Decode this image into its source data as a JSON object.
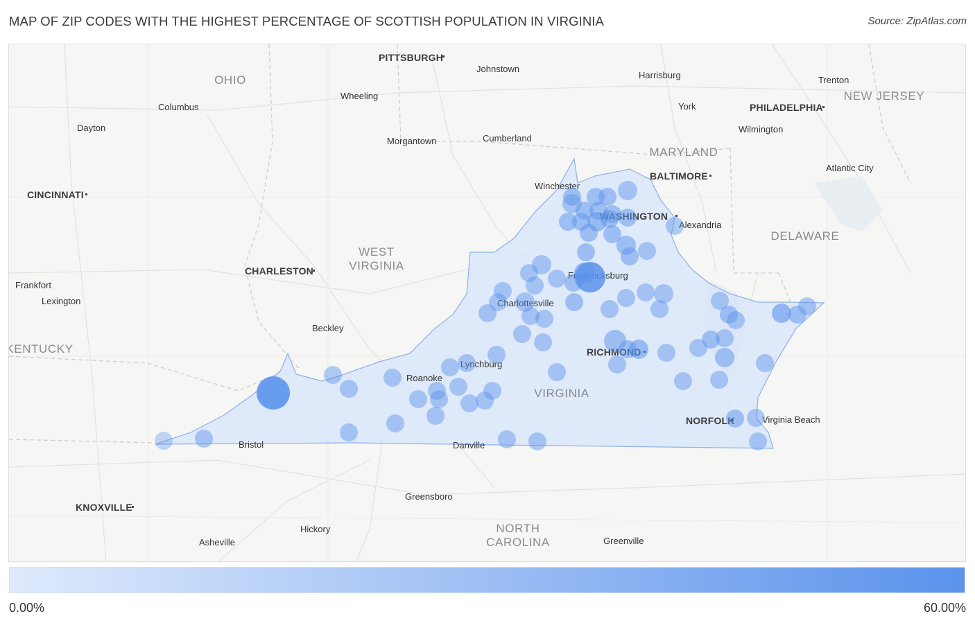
{
  "title": "MAP OF ZIP CODES WITH THE HIGHEST PERCENTAGE OF SCOTTISH POPULATION IN VIRGINIA",
  "source": "Source: ZipAtlas.com",
  "legend": {
    "min_label": "0.00%",
    "max_label": "60.00%",
    "min_value": 0,
    "max_value": 60,
    "color_low": "#dfeafc",
    "color_high": "#3d7fe8"
  },
  "colors": {
    "state_fill": "#d6e4fb",
    "state_stroke": "#8fb0e6",
    "marker": "#5b93ec",
    "background": "#f6f6f4"
  },
  "map_labels": {
    "states": [
      {
        "id": "ohio",
        "text": "OHIO"
      },
      {
        "id": "west-virginia-1",
        "text": "WEST"
      },
      {
        "id": "west-virginia-2",
        "text": "VIRGINIA"
      },
      {
        "id": "maryland",
        "text": "MARYLAND"
      },
      {
        "id": "new-jersey",
        "text": "NEW JERSEY"
      },
      {
        "id": "delaware",
        "text": "DELAWARE"
      },
      {
        "id": "kentucky",
        "text": "KENTUCKY"
      },
      {
        "id": "virginia",
        "text": "VIRGINIA"
      },
      {
        "id": "north-carolina-1",
        "text": "NORTH"
      },
      {
        "id": "north-carolina-2",
        "text": "CAROLINA"
      }
    ],
    "big_cities": [
      {
        "id": "pittsburgh",
        "text": "PITTSBURGH"
      },
      {
        "id": "philadelphia",
        "text": "PHILADELPHIA"
      },
      {
        "id": "baltimore",
        "text": "BALTIMORE"
      },
      {
        "id": "washington",
        "text": "WASHINGTON"
      },
      {
        "id": "cincinnati",
        "text": "CINCINNATI"
      },
      {
        "id": "charleston",
        "text": "CHARLESTON"
      },
      {
        "id": "richmond",
        "text": "RICHMOND"
      },
      {
        "id": "norfolk",
        "text": "NORFOLK"
      },
      {
        "id": "knoxville",
        "text": "KNOXVILLE"
      }
    ],
    "cities": [
      {
        "id": "johnstown",
        "text": "Johnstown"
      },
      {
        "id": "harrisburg",
        "text": "Harrisburg"
      },
      {
        "id": "trenton",
        "text": "Trenton"
      },
      {
        "id": "columbus",
        "text": "Columbus"
      },
      {
        "id": "wheeling",
        "text": "Wheeling"
      },
      {
        "id": "york",
        "text": "York"
      },
      {
        "id": "dayton",
        "text": "Dayton"
      },
      {
        "id": "wilmington",
        "text": "Wilmington"
      },
      {
        "id": "morgantown",
        "text": "Morgantown"
      },
      {
        "id": "cumberland",
        "text": "Cumberland"
      },
      {
        "id": "atlantic-city",
        "text": "Atlantic City"
      },
      {
        "id": "winchester",
        "text": "Winchester"
      },
      {
        "id": "alexandria",
        "text": "Alexandria"
      },
      {
        "id": "frankfort",
        "text": "Frankfort"
      },
      {
        "id": "fredericksburg",
        "text": "Fredericksburg"
      },
      {
        "id": "lexington",
        "text": "Lexington"
      },
      {
        "id": "charlottesville",
        "text": "Charlottesville"
      },
      {
        "id": "beckley",
        "text": "Beckley"
      },
      {
        "id": "lynchburg",
        "text": "Lynchburg"
      },
      {
        "id": "roanoke",
        "text": "Roanoke"
      },
      {
        "id": "virginia-beach",
        "text": "Virginia Beach"
      },
      {
        "id": "bristol",
        "text": "Bristol"
      },
      {
        "id": "danville",
        "text": "Danville"
      },
      {
        "id": "greensboro",
        "text": "Greensboro"
      },
      {
        "id": "hickory",
        "text": "Hickory"
      },
      {
        "id": "asheville",
        "text": "Asheville"
      },
      {
        "id": "greenville",
        "text": "Greenville"
      }
    ]
  }
}
